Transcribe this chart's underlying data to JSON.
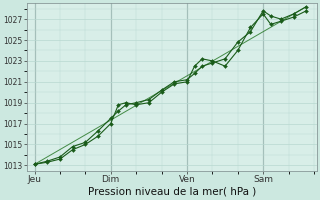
{
  "title": "Pression niveau de la mer( hPa )",
  "bg_color": "#cce8e0",
  "plot_bg_color": "#d8eee8",
  "grid_color": "#b8d8d0",
  "line_color1": "#1a5c1a",
  "line_color2": "#1a5c1a",
  "line_color3": "#2a7a2a",
  "ylim": [
    1012.5,
    1028.5
  ],
  "yticks": [
    1013,
    1015,
    1017,
    1019,
    1021,
    1023,
    1025,
    1027
  ],
  "ylabel_fontsize": 5.5,
  "xtick_labels": [
    "Jeu",
    "Dim",
    "Ven",
    "Sam"
  ],
  "xtick_positions": [
    0,
    30,
    60,
    90
  ],
  "vline_positions": [
    0,
    30,
    60,
    90
  ],
  "xlabel": "Pression niveau de la mer( hPa )",
  "xlabel_fontsize": 7.5,
  "series1_x": [
    0,
    5,
    10,
    15,
    20,
    25,
    30,
    33,
    36,
    40,
    45,
    50,
    55,
    60,
    63,
    66,
    70,
    75,
    80,
    85,
    90,
    93,
    97,
    102,
    107
  ],
  "series1_y": [
    1013.1,
    1013.4,
    1013.8,
    1014.8,
    1015.2,
    1016.3,
    1017.5,
    1018.2,
    1018.8,
    1019.0,
    1019.3,
    1020.2,
    1021.0,
    1021.2,
    1021.8,
    1022.5,
    1022.8,
    1023.2,
    1024.8,
    1025.8,
    1027.8,
    1027.3,
    1027.0,
    1027.5,
    1028.2
  ],
  "series2_x": [
    0,
    5,
    10,
    15,
    20,
    25,
    30,
    33,
    36,
    40,
    45,
    50,
    55,
    60,
    63,
    66,
    70,
    75,
    80,
    85,
    90,
    93,
    97,
    102,
    107
  ],
  "series2_y": [
    1013.1,
    1013.3,
    1013.6,
    1014.5,
    1015.0,
    1015.8,
    1017.0,
    1018.8,
    1019.0,
    1018.8,
    1019.0,
    1020.0,
    1020.8,
    1021.0,
    1022.5,
    1023.2,
    1023.0,
    1022.5,
    1024.0,
    1026.2,
    1027.5,
    1026.5,
    1026.8,
    1027.2,
    1027.8
  ],
  "series3_x": [
    0,
    107
  ],
  "series3_y": [
    1013.1,
    1028.2
  ],
  "xlim": [
    -3,
    111
  ]
}
